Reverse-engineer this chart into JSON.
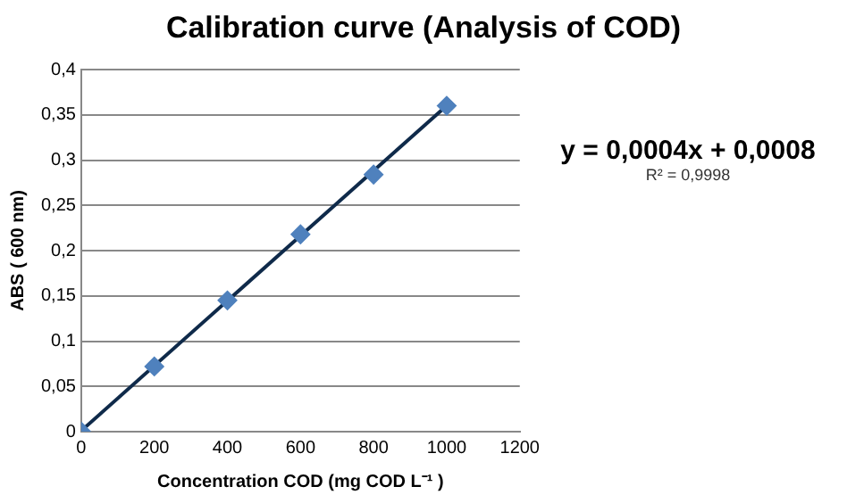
{
  "chart_data": {
    "type": "scatter",
    "title": "Calibration curve (Analysis of COD)",
    "xlabel": "Concentration COD (mg COD L⁻¹ )",
    "ylabel": "ABS ( 600 nm)",
    "annotations": [
      "y = 0,0004x + 0,0008",
      "R² = 0,9998"
    ],
    "series": [
      {
        "color": "#4f81bd",
        "x": [
          0,
          200,
          400,
          600,
          800,
          1000
        ],
        "values": [
          0,
          0.072,
          0.145,
          0.218,
          0.284,
          0.36
        ],
        "marker": "diamond"
      },
      {
        "type": "line",
        "color": "#0f2a4a",
        "x": [
          0,
          1000
        ],
        "values": [
          0.001,
          0.36
        ],
        "marker": "none"
      }
    ],
    "xlim": [
      0,
      1200
    ],
    "xticks": [
      0,
      200,
      400,
      600,
      800,
      1000,
      1200
    ],
    "ylim": [
      0,
      0.4
    ],
    "yticks": [
      {
        "value": 0,
        "label": "0"
      },
      {
        "value": 0.05,
        "label": "0,05"
      },
      {
        "value": 0.1,
        "label": "0,1"
      },
      {
        "value": 0.15,
        "label": "0,15"
      },
      {
        "value": 0.2,
        "label": "0,2"
      },
      {
        "value": 0.25,
        "label": "0,25"
      },
      {
        "value": 0.3,
        "label": "0,3"
      },
      {
        "value": 0.35,
        "label": "0,35"
      },
      {
        "value": 0.4,
        "label": "0,4"
      }
    ],
    "grid": "y",
    "legend": false
  }
}
